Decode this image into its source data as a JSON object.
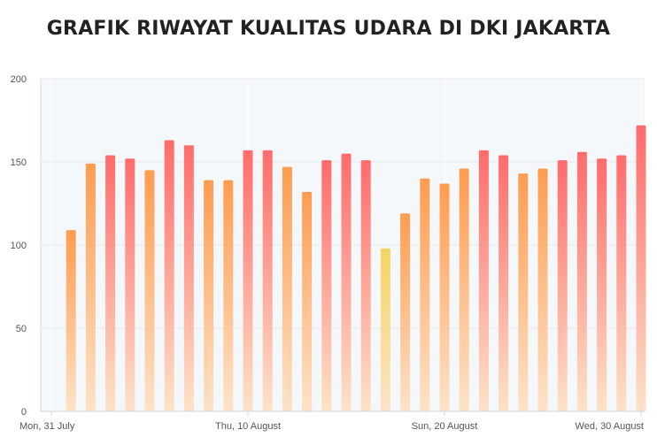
{
  "title": "GRAFIK RIWAYAT KUALITAS UDARA DI DKI JAKARTA",
  "chart_data": {
    "type": "bar",
    "x_tick_labels": [
      "Mon, 31 July",
      "Thu, 10 August",
      "Sun, 20 August",
      "Wed, 30 August"
    ],
    "x_tick_indices": [
      0,
      10,
      20,
      30
    ],
    "values": [
      null,
      109,
      149,
      154,
      152,
      145,
      163,
      160,
      139,
      139,
      157,
      157,
      147,
      132,
      151,
      155,
      151,
      98,
      119,
      140,
      137,
      146,
      157,
      154,
      143,
      146,
      151,
      156,
      152,
      154,
      172
    ],
    "ylim": [
      0,
      200
    ],
    "y_ticks": [
      0,
      50,
      100,
      150,
      200
    ],
    "grid": true,
    "colors": {
      "moderate_top": "#f5d560",
      "unhealthy_sensitive_top": "#ff9c50",
      "unhealthy_top": "#ff6b6b",
      "bar_bottom": "#fde3c8",
      "plot_background": "#f4f8fa"
    }
  }
}
